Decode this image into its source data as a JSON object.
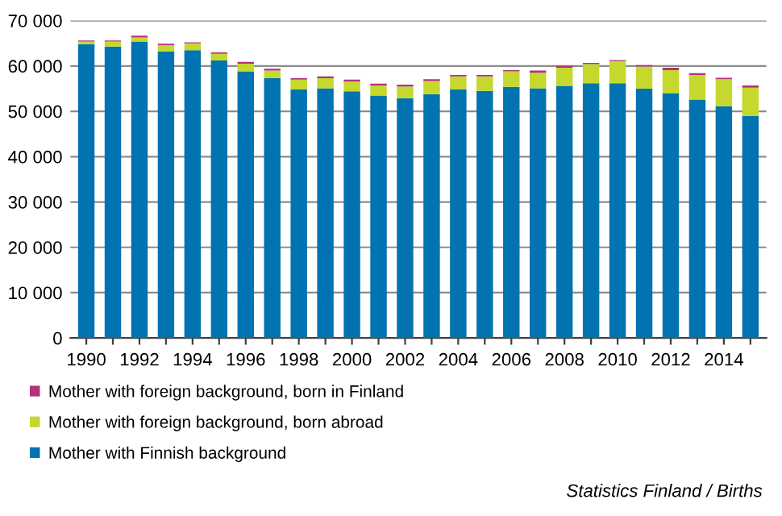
{
  "chart_data": {
    "type": "bar",
    "stacked": true,
    "categories": [
      "1990",
      null,
      "1992",
      null,
      "1994",
      null,
      "1996",
      null,
      "1998",
      null,
      "2000",
      null,
      "2002",
      null,
      "2004",
      null,
      "2006",
      null,
      "2008",
      null,
      "2010",
      null,
      "2012",
      null,
      "2014",
      null
    ],
    "series": [
      {
        "name": "Mother with Finnish background",
        "color": "#0073b0",
        "values": [
          64800,
          64300,
          65400,
          63200,
          63500,
          61200,
          58800,
          57300,
          54800,
          55100,
          54400,
          53500,
          52900,
          53800,
          54800,
          54500,
          55400,
          55100,
          55600,
          56200,
          56200,
          55000,
          54000,
          52600,
          51100,
          49000
        ]
      },
      {
        "name": "Mother with foreign background, born abroad",
        "color": "#c4d82e",
        "values": [
          600,
          1100,
          900,
          1400,
          1500,
          1500,
          1700,
          1700,
          2200,
          2200,
          2200,
          2200,
          2600,
          2900,
          2900,
          3200,
          3400,
          3400,
          4000,
          4200,
          4900,
          4900,
          5100,
          5400,
          6000,
          6200
        ]
      },
      {
        "name": "Mother with foreign background, born in Finland",
        "color": "#b5307a",
        "values": [
          200,
          200,
          400,
          300,
          200,
          300,
          400,
          400,
          300,
          400,
          400,
          400,
          400,
          400,
          300,
          300,
          300,
          500,
          400,
          300,
          200,
          300,
          500,
          400,
          300,
          500
        ]
      }
    ],
    "ylim": [
      0,
      70000
    ],
    "yticks": [
      {
        "value": 0,
        "label": "0"
      },
      {
        "value": 10000,
        "label": "10 000"
      },
      {
        "value": 20000,
        "label": "20 000"
      },
      {
        "value": 30000,
        "label": "30 000"
      },
      {
        "value": 40000,
        "label": "40 000"
      },
      {
        "value": 50000,
        "label": "50 000"
      },
      {
        "value": 60000,
        "label": "60 000"
      },
      {
        "value": 70000,
        "label": "70 000"
      }
    ],
    "grid": "y",
    "legend": "bottom",
    "annotations": [
      "Statistics Finland / Births"
    ]
  }
}
